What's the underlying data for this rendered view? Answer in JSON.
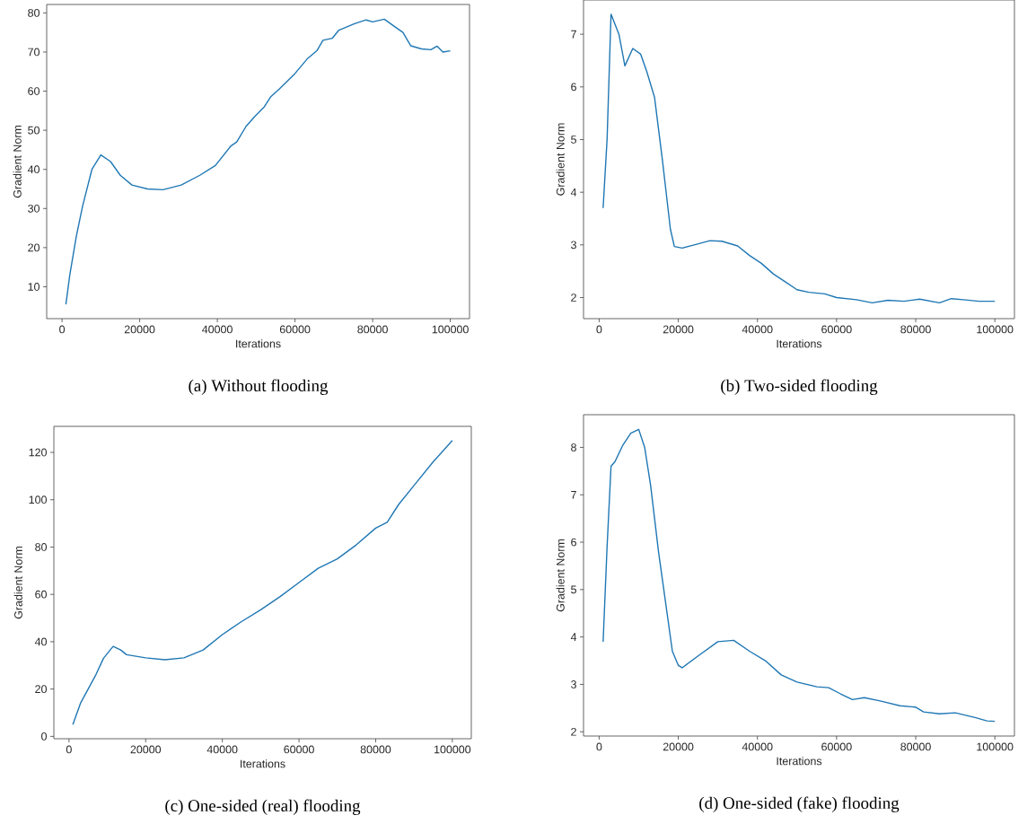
{
  "chart_data": [
    {
      "type": "line",
      "title": "(a) Without flooding",
      "xlabel": "Iterations",
      "ylabel": "Gradient Norm",
      "color": "#1f77b4",
      "xlim": [
        -3950,
        104950
      ],
      "ylim": [
        1.85,
        82.15
      ],
      "xticks": [
        0,
        20000,
        40000,
        60000,
        80000,
        100000
      ],
      "yticks": [
        10,
        20,
        30,
        40,
        50,
        60,
        70,
        80
      ],
      "x": [
        1000,
        2000,
        3700,
        5300,
        7700,
        10000,
        12500,
        15000,
        18000,
        22000,
        26000,
        30700,
        35500,
        39500,
        43500,
        45000,
        47400,
        49700,
        52100,
        53700,
        56000,
        60000,
        63300,
        65700,
        67200,
        69600,
        71200,
        75200,
        78300,
        80000,
        83000,
        85500,
        87800,
        89800,
        92600,
        95000,
        96600,
        98100,
        100000
      ],
      "values": [
        5.5,
        13,
        23,
        30.6,
        40,
        43.7,
        42,
        38.5,
        36,
        35,
        34.8,
        36,
        38.5,
        41,
        46,
        47,
        51,
        53.6,
        56,
        58.5,
        60.6,
        64.5,
        68.4,
        70.4,
        73,
        73.5,
        75.5,
        77.2,
        78.2,
        77.7,
        78.4,
        76.6,
        75,
        71.6,
        70.8,
        70.6,
        71.5,
        70,
        70.3
      ]
    },
    {
      "type": "line",
      "title": "(b) Two-sided flooding",
      "xlabel": "Iterations",
      "ylabel": "Gradient Norm",
      "color": "#1f77b4",
      "xlim": [
        -3950,
        104950
      ],
      "ylim": [
        1.6,
        7.65
      ],
      "xticks": [
        0,
        20000,
        40000,
        60000,
        80000,
        100000
      ],
      "yticks": [
        2,
        3,
        4,
        5,
        6,
        7
      ],
      "x": [
        1000,
        2000,
        3000,
        5000,
        6500,
        8500,
        10500,
        12000,
        14000,
        16000,
        18000,
        19000,
        21000,
        24000,
        28000,
        31000,
        35000,
        38000,
        41000,
        44000,
        47000,
        50000,
        53000,
        57000,
        60000,
        65000,
        69000,
        73000,
        77000,
        81000,
        86000,
        89000,
        92000,
        96000,
        100000
      ],
      "values": [
        3.7,
        5.0,
        7.38,
        7.0,
        6.4,
        6.73,
        6.62,
        6.3,
        5.8,
        4.6,
        3.3,
        2.97,
        2.94,
        3.0,
        3.08,
        3.07,
        2.98,
        2.8,
        2.65,
        2.45,
        2.3,
        2.15,
        2.1,
        2.07,
        2.0,
        1.96,
        1.9,
        1.95,
        1.93,
        1.97,
        1.9,
        1.98,
        1.96,
        1.93,
        1.93
      ]
    },
    {
      "type": "line",
      "title": "(c) One-sided (real) flooding",
      "xlabel": "Iterations",
      "ylabel": "Gradient Norm",
      "color": "#1f77b4",
      "xlim": [
        -3950,
        104950
      ],
      "ylim": [
        -1,
        131
      ],
      "xticks": [
        0,
        20000,
        40000,
        60000,
        80000,
        100000
      ],
      "yticks": [
        0,
        20,
        40,
        60,
        80,
        100,
        120
      ],
      "x": [
        1000,
        3000,
        5000,
        7000,
        9000,
        11500,
        13500,
        15000,
        20000,
        25000,
        30000,
        35000,
        40000,
        45000,
        50000,
        55000,
        60000,
        65000,
        70000,
        75000,
        80000,
        83000,
        86000,
        90000,
        95000,
        100000
      ],
      "values": [
        5,
        14,
        20,
        26,
        33,
        38,
        36.5,
        34.5,
        33.2,
        32.4,
        33.2,
        36.5,
        43,
        48.5,
        53.5,
        59,
        65,
        71,
        75,
        81,
        88,
        90.5,
        98,
        106,
        116,
        125
      ]
    },
    {
      "type": "line",
      "title": "(d) One-sided (fake) flooding",
      "xlabel": "Iterations",
      "ylabel": "Gradient Norm",
      "color": "#1f77b4",
      "xlim": [
        -3950,
        104950
      ],
      "ylim": [
        1.91,
        8.69
      ],
      "xticks": [
        0,
        20000,
        40000,
        60000,
        80000,
        100000
      ],
      "yticks": [
        2,
        3,
        4,
        5,
        6,
        7,
        8
      ],
      "x": [
        1000,
        2000,
        3000,
        4000,
        6000,
        8000,
        10000,
        11500,
        13000,
        15000,
        16500,
        18500,
        20000,
        21000,
        25000,
        30000,
        34000,
        38000,
        42000,
        46000,
        50000,
        55000,
        58000,
        61000,
        64000,
        67000,
        71000,
        76000,
        80000,
        82000,
        86000,
        90000,
        95000,
        98000,
        100000
      ],
      "values": [
        3.9,
        5.9,
        7.6,
        7.7,
        8.05,
        8.3,
        8.38,
        8.0,
        7.2,
        5.8,
        4.9,
        3.7,
        3.4,
        3.35,
        3.6,
        3.9,
        3.93,
        3.7,
        3.5,
        3.2,
        3.05,
        2.95,
        2.93,
        2.8,
        2.68,
        2.72,
        2.65,
        2.55,
        2.52,
        2.42,
        2.38,
        2.4,
        2.3,
        2.23,
        2.22
      ]
    }
  ]
}
